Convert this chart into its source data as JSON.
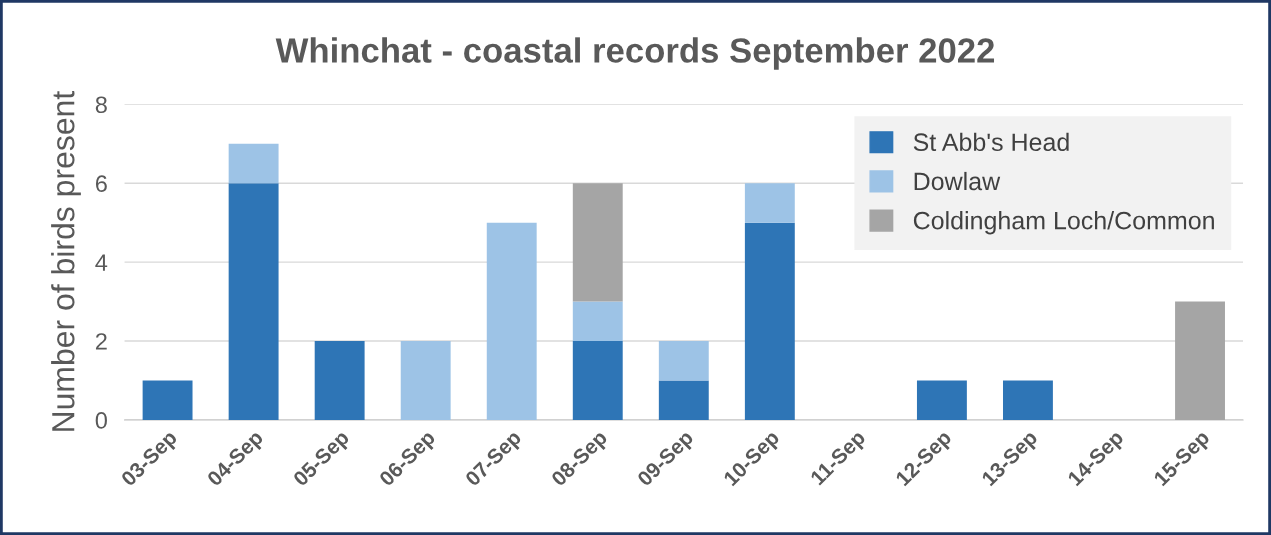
{
  "chart_data": {
    "type": "bar",
    "stacked": true,
    "title": "Whinchat - coastal records September 2022",
    "ylabel": "Number of birds present",
    "categories": [
      "03-Sep",
      "04-Sep",
      "05-Sep",
      "06-Sep",
      "07-Sep",
      "08-Sep",
      "09-Sep",
      "10-Sep",
      "11-Sep",
      "12-Sep",
      "13-Sep",
      "14-Sep",
      "15-Sep"
    ],
    "series": [
      {
        "name": "St Abb's Head",
        "color": "#2e75b6",
        "values": [
          1,
          6,
          2,
          0,
          0,
          2,
          1,
          5,
          0,
          1,
          1,
          0,
          0
        ]
      },
      {
        "name": "Dowlaw",
        "color": "#9dc3e6",
        "values": [
          0,
          1,
          0,
          2,
          5,
          1,
          1,
          1,
          0,
          0,
          0,
          0,
          0
        ]
      },
      {
        "name": "Coldingham Loch/Common",
        "color": "#a5a5a5",
        "values": [
          0,
          0,
          0,
          0,
          0,
          3,
          0,
          0,
          0,
          0,
          0,
          0,
          3
        ]
      }
    ],
    "ylim": [
      0,
      8
    ],
    "yticks": [
      0,
      2,
      4,
      6,
      8
    ],
    "grid": "y",
    "legend": "top right"
  }
}
